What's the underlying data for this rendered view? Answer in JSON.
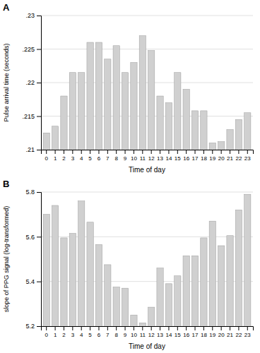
{
  "chart_data": [
    {
      "type": "bar",
      "title": "A",
      "categories": [
        "0",
        "1",
        "2",
        "3",
        "4",
        "5",
        "6",
        "7",
        "8",
        "9",
        "10",
        "11",
        "12",
        "13",
        "14",
        "15",
        "16",
        "17",
        "18",
        "19",
        "20",
        "21",
        "22",
        "23"
      ],
      "values": [
        0.2125,
        0.2135,
        0.218,
        0.2215,
        0.2215,
        0.226,
        0.226,
        0.2235,
        0.2255,
        0.2215,
        0.223,
        0.227,
        0.2248,
        0.218,
        0.217,
        0.2215,
        0.219,
        0.2158,
        0.2158,
        0.211,
        0.2112,
        0.213,
        0.2145,
        0.2155
      ],
      "color": "#d0d0d0",
      "x_label": "Time of day",
      "y_label": "Pulse arrival time (seconds)",
      "ylim": [
        0.21,
        0.23
      ],
      "yticks": [
        {
          "value": 0.21,
          "label": ".21"
        },
        {
          "value": 0.215,
          "label": ".215"
        },
        {
          "value": 0.22,
          "label": ".22"
        },
        {
          "value": 0.225,
          "label": ".225"
        },
        {
          "value": 0.23,
          "label": ".23"
        }
      ],
      "grid": true
    },
    {
      "type": "bar",
      "title": "B",
      "categories": [
        "0",
        "1",
        "2",
        "3",
        "4",
        "5",
        "6",
        "7",
        "8",
        "9",
        "10",
        "11",
        "12",
        "13",
        "14",
        "15",
        "16",
        "17",
        "18",
        "19",
        "20",
        "21",
        "22",
        "23"
      ],
      "values": [
        5.7,
        5.74,
        5.595,
        5.615,
        5.76,
        5.665,
        5.565,
        5.475,
        5.375,
        5.37,
        5.25,
        5.215,
        5.285,
        5.46,
        5.39,
        5.425,
        5.515,
        5.515,
        5.595,
        5.67,
        5.56,
        5.605,
        5.72,
        5.79
      ],
      "color": "#d0d0d0",
      "x_label": "Time of day",
      "y_label": "slope of PPG signal (log-transformed)",
      "ylim": [
        5.2,
        5.8
      ],
      "yticks": [
        5.2,
        5.4,
        5.6,
        5.8
      ],
      "grid": true
    }
  ]
}
